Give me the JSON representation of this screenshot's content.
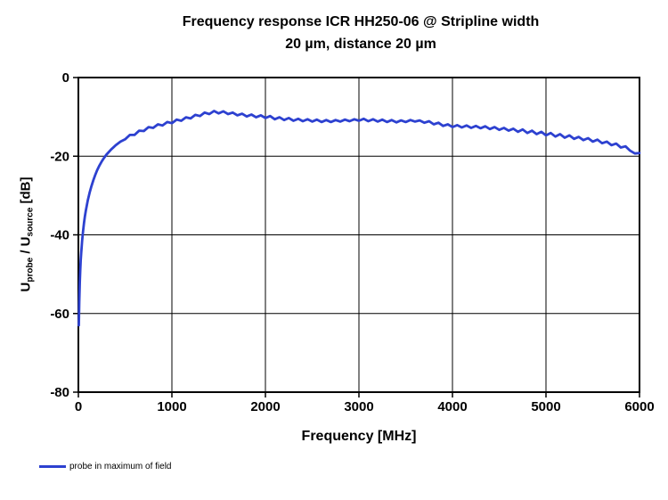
{
  "chart_data": {
    "type": "line",
    "title_line1": "Frequency response ICR HH250-06 @ Stripline  width",
    "title_line2": "20 µm, distance 20 µm",
    "xlabel": "Frequency [MHz]",
    "ylabel_parts": [
      {
        "text": "U"
      },
      {
        "text": "probe",
        "sub": true
      },
      {
        "text": " / U"
      },
      {
        "text": "source",
        "sub": true
      },
      {
        "text": " [dB]"
      }
    ],
    "xlim": [
      0,
      6000
    ],
    "ylim": [
      -80,
      0
    ],
    "x_ticks": [
      0,
      1000,
      2000,
      3000,
      4000,
      5000,
      6000
    ],
    "y_ticks": [
      0,
      -20,
      -40,
      -60,
      -80
    ],
    "grid": true,
    "legend_position": "bottom-left",
    "series": [
      {
        "name": "probe in maximum of field",
        "color": "#2d41d0",
        "points": [
          [
            5,
            -63
          ],
          [
            10,
            -57
          ],
          [
            15,
            -52
          ],
          [
            20,
            -49
          ],
          [
            25,
            -46.5
          ],
          [
            30,
            -44.5
          ],
          [
            40,
            -41.5
          ],
          [
            50,
            -39
          ],
          [
            60,
            -37
          ],
          [
            70,
            -35.3
          ],
          [
            80,
            -33.8
          ],
          [
            90,
            -32.5
          ],
          [
            100,
            -31.3
          ],
          [
            120,
            -29.3
          ],
          [
            140,
            -27.6
          ],
          [
            160,
            -26.1
          ],
          [
            180,
            -24.8
          ],
          [
            200,
            -23.6
          ],
          [
            225,
            -22.4
          ],
          [
            250,
            -21.3
          ],
          [
            275,
            -20.4
          ],
          [
            300,
            -19.6
          ],
          [
            350,
            -18.3
          ],
          [
            400,
            -17.2
          ],
          [
            450,
            -16.3
          ],
          [
            500,
            -15.7
          ],
          [
            550,
            -14.6
          ],
          [
            600,
            -14.6
          ],
          [
            650,
            -13.5
          ],
          [
            700,
            -13.6
          ],
          [
            750,
            -12.6
          ],
          [
            800,
            -12.8
          ],
          [
            850,
            -11.9
          ],
          [
            900,
            -12.2
          ],
          [
            950,
            -11.3
          ],
          [
            1000,
            -11.6
          ],
          [
            1050,
            -10.7
          ],
          [
            1100,
            -11.0
          ],
          [
            1150,
            -10.1
          ],
          [
            1200,
            -10.4
          ],
          [
            1250,
            -9.5
          ],
          [
            1300,
            -9.8
          ],
          [
            1350,
            -8.9
          ],
          [
            1400,
            -9.3
          ],
          [
            1450,
            -8.5
          ],
          [
            1500,
            -9.1
          ],
          [
            1550,
            -8.6
          ],
          [
            1600,
            -9.3
          ],
          [
            1650,
            -8.9
          ],
          [
            1700,
            -9.6
          ],
          [
            1750,
            -9.2
          ],
          [
            1800,
            -9.9
          ],
          [
            1850,
            -9.4
          ],
          [
            1900,
            -10.1
          ],
          [
            1950,
            -9.6
          ],
          [
            2000,
            -10.3
          ],
          [
            2050,
            -9.8
          ],
          [
            2100,
            -10.6
          ],
          [
            2150,
            -10.1
          ],
          [
            2200,
            -10.8
          ],
          [
            2250,
            -10.3
          ],
          [
            2300,
            -11.0
          ],
          [
            2350,
            -10.5
          ],
          [
            2400,
            -11.1
          ],
          [
            2450,
            -10.6
          ],
          [
            2500,
            -11.2
          ],
          [
            2550,
            -10.7
          ],
          [
            2600,
            -11.3
          ],
          [
            2650,
            -10.8
          ],
          [
            2700,
            -11.3
          ],
          [
            2750,
            -10.8
          ],
          [
            2800,
            -11.2
          ],
          [
            2850,
            -10.7
          ],
          [
            2900,
            -11.1
          ],
          [
            2950,
            -10.6
          ],
          [
            3000,
            -11.0
          ],
          [
            3050,
            -10.5
          ],
          [
            3100,
            -11.1
          ],
          [
            3150,
            -10.6
          ],
          [
            3200,
            -11.2
          ],
          [
            3250,
            -10.7
          ],
          [
            3300,
            -11.3
          ],
          [
            3350,
            -10.8
          ],
          [
            3400,
            -11.4
          ],
          [
            3450,
            -10.9
          ],
          [
            3500,
            -11.3
          ],
          [
            3550,
            -10.8
          ],
          [
            3600,
            -11.2
          ],
          [
            3650,
            -10.9
          ],
          [
            3700,
            -11.5
          ],
          [
            3750,
            -11.1
          ],
          [
            3800,
            -11.9
          ],
          [
            3850,
            -11.5
          ],
          [
            3900,
            -12.3
          ],
          [
            3950,
            -11.9
          ],
          [
            4000,
            -12.6
          ],
          [
            4050,
            -12.1
          ],
          [
            4100,
            -12.7
          ],
          [
            4150,
            -12.2
          ],
          [
            4200,
            -12.8
          ],
          [
            4250,
            -12.3
          ],
          [
            4300,
            -12.9
          ],
          [
            4350,
            -12.4
          ],
          [
            4400,
            -13.1
          ],
          [
            4450,
            -12.6
          ],
          [
            4500,
            -13.3
          ],
          [
            4550,
            -12.8
          ],
          [
            4600,
            -13.5
          ],
          [
            4650,
            -13.0
          ],
          [
            4700,
            -13.8
          ],
          [
            4750,
            -13.2
          ],
          [
            4800,
            -14.1
          ],
          [
            4850,
            -13.5
          ],
          [
            4900,
            -14.4
          ],
          [
            4950,
            -13.8
          ],
          [
            5000,
            -14.7
          ],
          [
            5050,
            -14.1
          ],
          [
            5100,
            -15.0
          ],
          [
            5150,
            -14.4
          ],
          [
            5200,
            -15.3
          ],
          [
            5250,
            -14.7
          ],
          [
            5300,
            -15.6
          ],
          [
            5350,
            -15.1
          ],
          [
            5400,
            -15.9
          ],
          [
            5450,
            -15.4
          ],
          [
            5500,
            -16.3
          ],
          [
            5550,
            -15.8
          ],
          [
            5600,
            -16.7
          ],
          [
            5650,
            -16.3
          ],
          [
            5700,
            -17.2
          ],
          [
            5750,
            -16.8
          ],
          [
            5800,
            -17.8
          ],
          [
            5850,
            -17.5
          ],
          [
            5900,
            -18.6
          ],
          [
            5950,
            -19.3
          ],
          [
            6000,
            -19.2
          ]
        ]
      }
    ]
  }
}
